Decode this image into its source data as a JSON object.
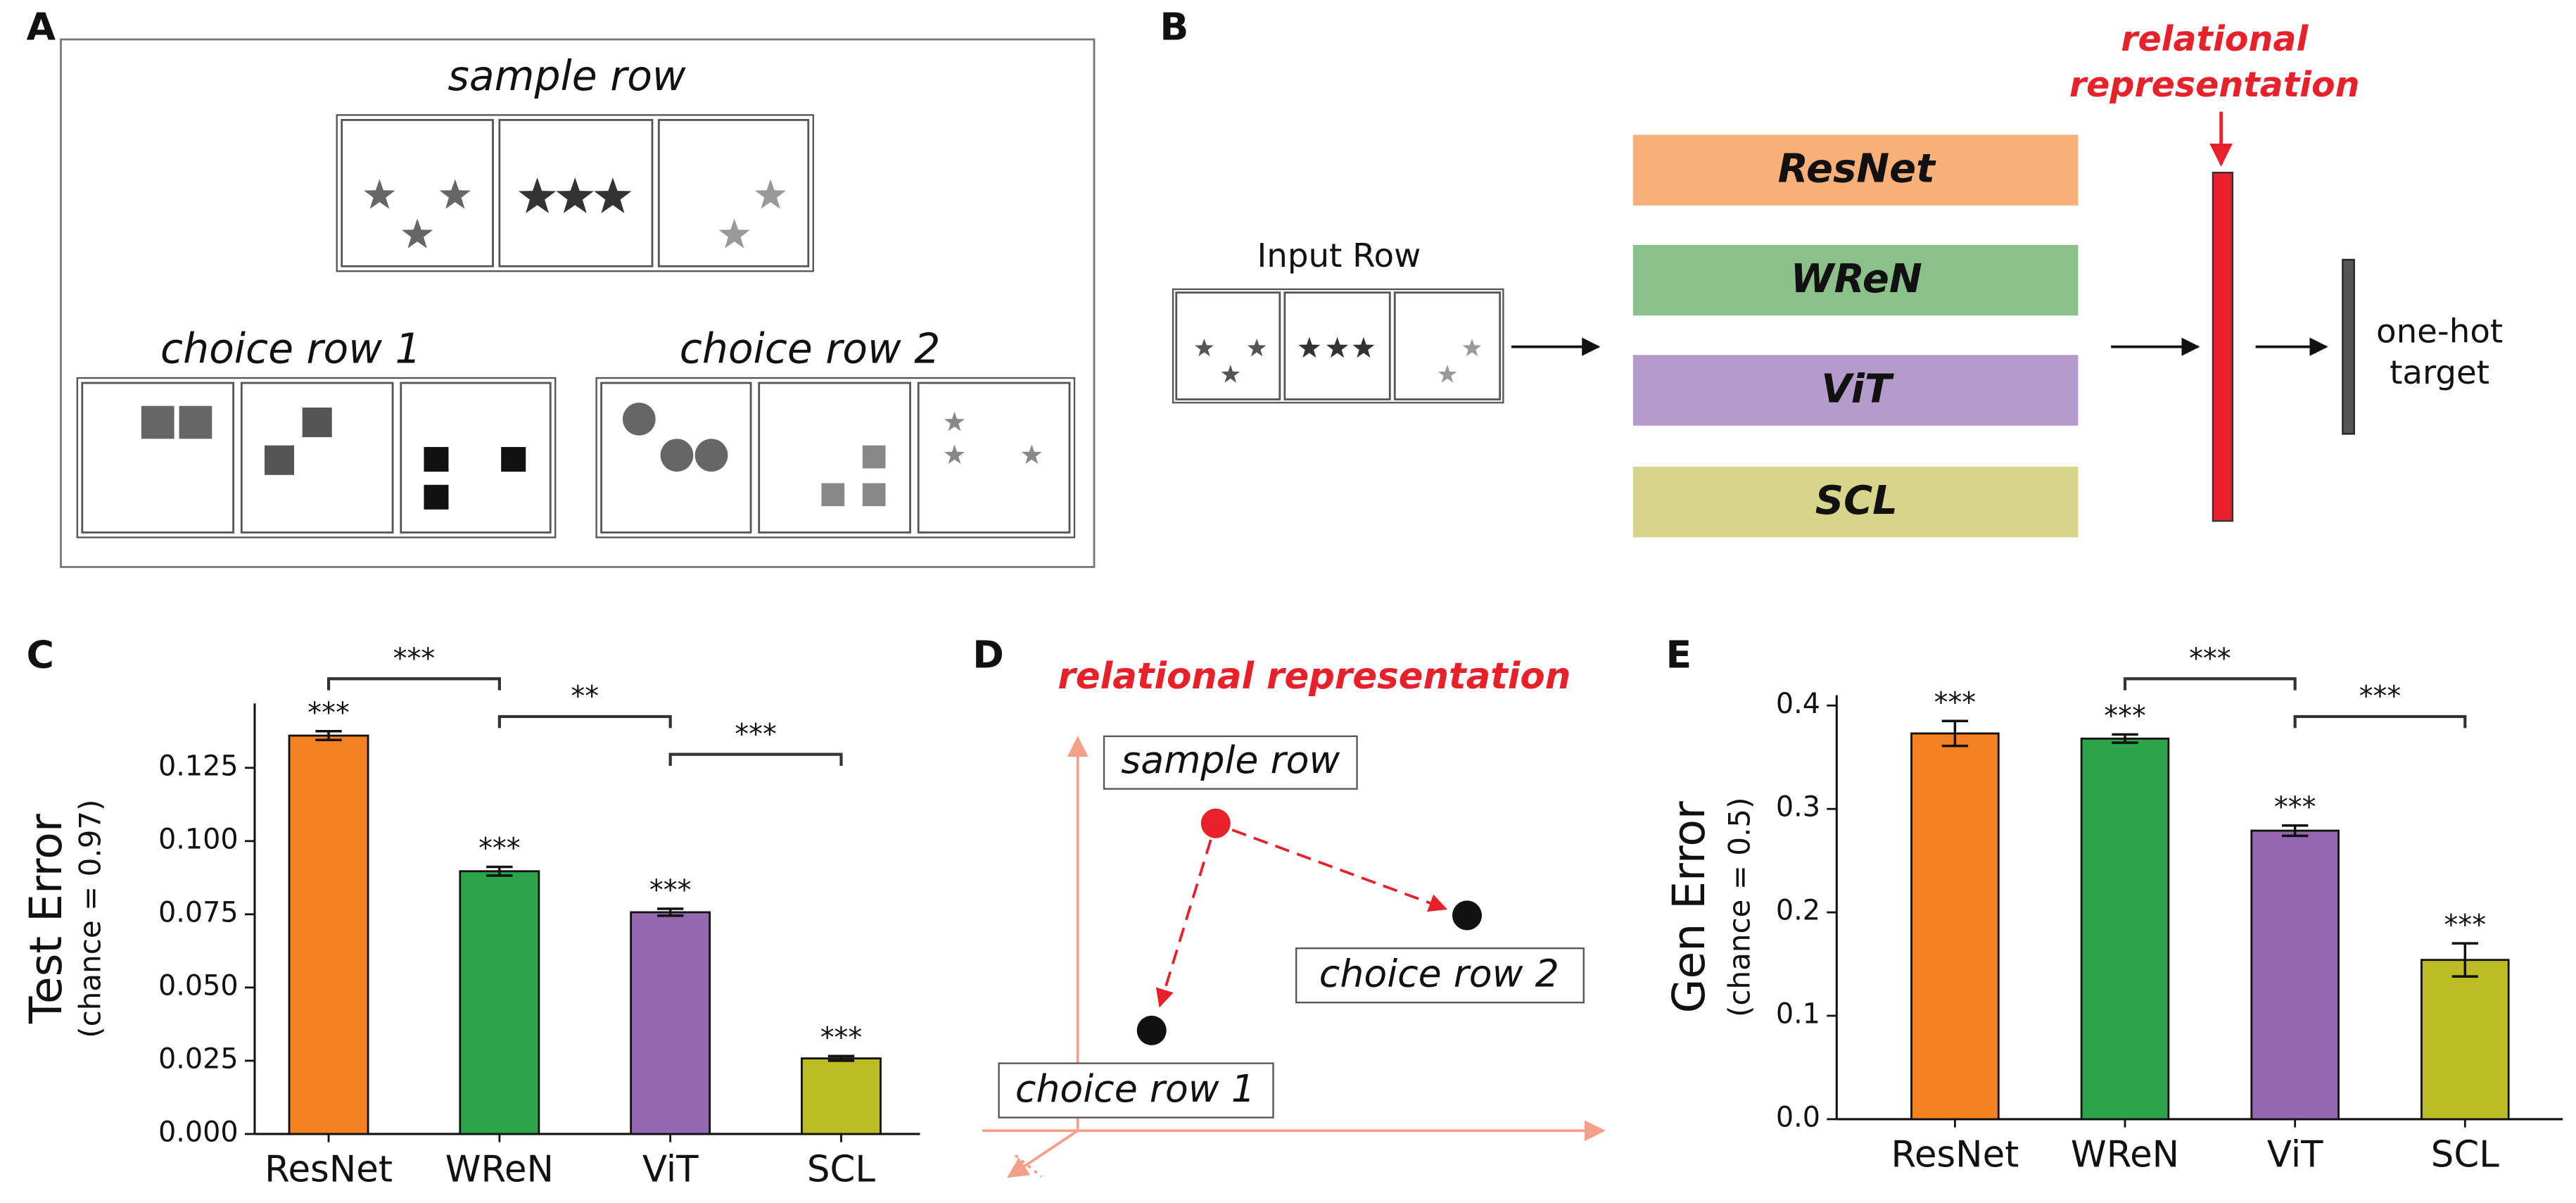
{
  "panel_a": {
    "label": "A",
    "sample_title": "sample row",
    "choice1_title": "choice row 1",
    "choice2_title": "choice row 2"
  },
  "panel_b": {
    "label": "B",
    "input_label": "Input Row",
    "models": [
      "ResNet",
      "WReN",
      "ViT",
      "SCL"
    ],
    "annotation": [
      "relational",
      "representation"
    ],
    "target": [
      "one-hot",
      "target"
    ]
  },
  "panel_d": {
    "label": "D",
    "title": "relational representation",
    "points": [
      "sample row",
      "choice row 2",
      "choice row 1"
    ]
  },
  "chart_data": [
    {
      "type": "bar",
      "panel_label": "C",
      "ylabel": "Test Error",
      "ylabel_note": "(chance = 0.97)",
      "categories": [
        "ResNet",
        "WReN",
        "ViT",
        "SCL"
      ],
      "values": [
        0.136,
        0.0897,
        0.0757,
        0.0258
      ],
      "errors": [
        0.0015,
        0.0015,
        0.0012,
        0.0008
      ],
      "colors": [
        "#f58220",
        "#2ca44a",
        "#9467b0",
        "#bcbd22"
      ],
      "significance": [
        "***",
        "***",
        "***",
        "***"
      ],
      "comparisons": [
        {
          "from": 0,
          "to": 1,
          "label": "***"
        },
        {
          "from": 1,
          "to": 2,
          "label": "**"
        },
        {
          "from": 2,
          "to": 3,
          "label": "***"
        }
      ],
      "ylim": [
        0,
        0.147
      ],
      "yticks": [
        {
          "value": 0,
          "label": "0.000"
        },
        {
          "value": 0.025,
          "label": "0.025"
        },
        {
          "value": 0.05,
          "label": "0.050"
        },
        {
          "value": 0.075,
          "label": "0.075"
        },
        {
          "value": 0.1,
          "label": "0.100"
        },
        {
          "value": 0.125,
          "label": "0.125"
        }
      ]
    },
    {
      "type": "bar",
      "panel_label": "E",
      "ylabel": "Gen Error",
      "ylabel_note": "(chance = 0.5)",
      "categories": [
        "ResNet",
        "WReN",
        "ViT",
        "SCL"
      ],
      "values": [
        0.373,
        0.368,
        0.279,
        0.154
      ],
      "errors": [
        0.012,
        0.004,
        0.005,
        0.016
      ],
      "colors": [
        "#f58220",
        "#2ca44a",
        "#9467b0",
        "#bcbd22"
      ],
      "significance": [
        "***",
        "***",
        "***",
        "***"
      ],
      "comparisons": [
        {
          "from": 1,
          "to": 2,
          "label": "***"
        },
        {
          "from": 2,
          "to": 3,
          "label": "***"
        }
      ],
      "ylim": [
        0,
        0.41
      ],
      "yticks": [
        {
          "value": 0,
          "label": "0.0"
        },
        {
          "value": 0.1,
          "label": "0.1"
        },
        {
          "value": 0.2,
          "label": "0.2"
        },
        {
          "value": 0.3,
          "label": "0.3"
        },
        {
          "value": 0.4,
          "label": "0.4"
        }
      ]
    }
  ]
}
